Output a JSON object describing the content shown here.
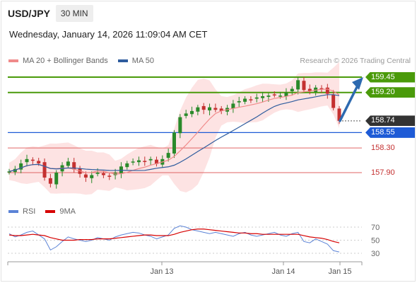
{
  "header": {
    "symbol": "USD/JPY",
    "timeframe": "30 MIN",
    "datetime": "Wednesday, January 14, 2026 11:09:04 AM CET",
    "copyright": "Research © 2026 Trading Central"
  },
  "legend": {
    "ma20": {
      "label": "MA 20 + Bollinger Bands",
      "color": "#f08a8a"
    },
    "ma50": {
      "label": "MA 50",
      "color": "#2e5c9e"
    },
    "rsi": {
      "label": "RSI",
      "color": "#5b83d6"
    },
    "ma9": {
      "label": "9MA",
      "color": "#d60000"
    }
  },
  "colors": {
    "up": "#2a8a2a",
    "down": "#c43030",
    "resistance": "#4a9a0a",
    "support": "#1e5bd6",
    "pivot": "#e06666",
    "band": "#fde0e0",
    "arrow": "#2d6ab0",
    "current": "#333333"
  },
  "chart_data": {
    "type": "candlestick",
    "x_labels": [
      "Jan 13",
      "Jan 14",
      "Jan 15"
    ],
    "ylim": [
      157.4,
      159.6
    ],
    "levels": [
      {
        "value": 159.45,
        "label": "159.45",
        "kind": "resistance"
      },
      {
        "value": 159.2,
        "label": "159.20",
        "kind": "resistance"
      },
      {
        "value": 158.74,
        "label": "158.74",
        "kind": "current"
      },
      {
        "value": 158.55,
        "label": "158.55",
        "kind": "support"
      },
      {
        "value": 158.3,
        "label": "158.30",
        "kind": "pivot"
      },
      {
        "value": 157.9,
        "label": "157.90",
        "kind": "pivot"
      }
    ],
    "close_path": [
      157.92,
      157.96,
      158.05,
      158.12,
      158.1,
      158.05,
      157.82,
      157.72,
      157.9,
      158.02,
      158.08,
      157.95,
      157.88,
      157.82,
      157.86,
      157.9,
      157.86,
      157.84,
      157.9,
      158.0,
      158.05,
      158.08,
      158.1,
      158.08,
      158.12,
      158.04,
      158.12,
      158.22,
      158.55,
      158.8,
      158.86,
      158.9,
      158.96,
      158.92,
      158.96,
      158.92,
      158.9,
      158.95,
      159.02,
      159.06,
      159.1,
      159.08,
      159.12,
      159.14,
      159.15,
      159.16,
      159.15,
      159.2,
      159.26,
      159.4,
      159.24,
      159.22,
      159.28,
      159.26,
      159.18,
      158.95,
      158.74
    ],
    "rsi": {
      "ticks": [
        70,
        50,
        30
      ],
      "ylim": [
        20,
        80
      ],
      "rsi_values": [
        60,
        55,
        58,
        62,
        64,
        58,
        52,
        35,
        40,
        48,
        55,
        52,
        50,
        48,
        50,
        54,
        52,
        50,
        55,
        58,
        60,
        62,
        61,
        58,
        56,
        52,
        55,
        58,
        68,
        72,
        70,
        66,
        64,
        62,
        60,
        62,
        60,
        58,
        56,
        60,
        62,
        58,
        56,
        58,
        60,
        62,
        58,
        56,
        60,
        62,
        48,
        46,
        52,
        48,
        44,
        34,
        32
      ],
      "ma9_values": [
        58,
        57,
        57,
        58,
        59,
        58,
        57,
        54,
        52,
        50,
        50,
        50,
        51,
        51,
        51,
        52,
        52,
        52,
        53,
        54,
        55,
        56,
        57,
        58,
        58,
        57,
        57,
        57,
        59,
        62,
        64,
        66,
        67,
        67,
        66,
        65,
        64,
        63,
        62,
        61,
        61,
        60,
        60,
        59,
        59,
        59,
        59,
        59,
        59,
        59,
        57,
        55,
        54,
        53,
        51,
        48,
        46
      ]
    }
  }
}
